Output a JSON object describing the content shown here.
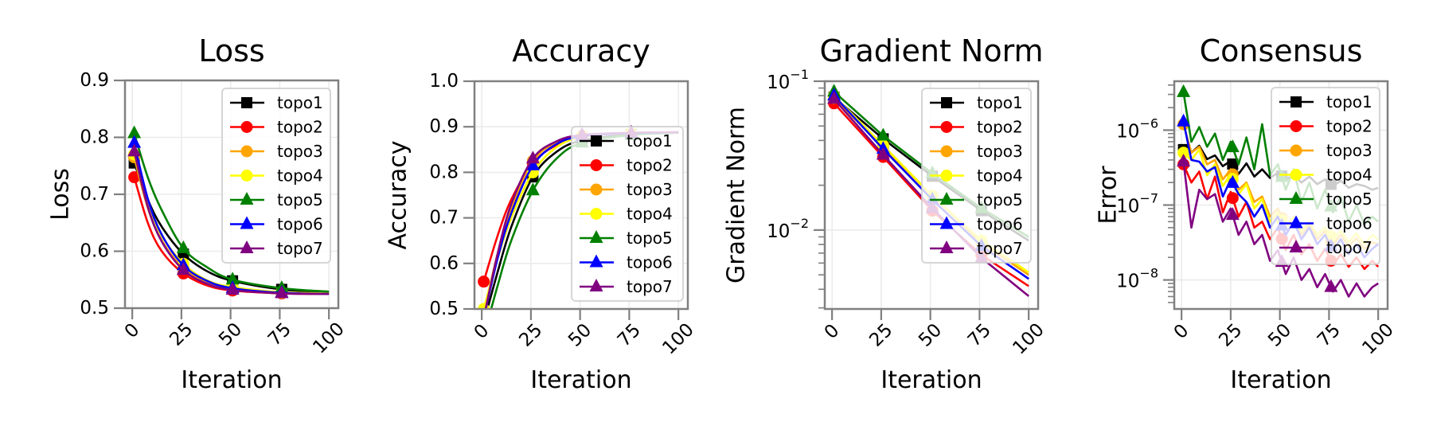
{
  "chart_data": [
    {
      "type": "line",
      "title": "Loss",
      "xlabel": "Iteration",
      "ylabel": "Loss",
      "yscale": "linear",
      "xlim": [
        -3.7,
        104.8
      ],
      "ylim": [
        0.5,
        0.9
      ],
      "xticks": [
        "0",
        "25",
        "50",
        "75",
        "100"
      ],
      "yticks": [
        {
          "v": 0.5,
          "label": "0.5"
        },
        {
          "v": 0.6,
          "label": "0.6"
        },
        {
          "v": 0.7,
          "label": "0.7"
        },
        {
          "v": 0.8,
          "label": "0.8"
        },
        {
          "v": 0.9,
          "label": "0.9"
        }
      ],
      "grid": true,
      "legend": "upper right",
      "markers_at": [
        1,
        26,
        51,
        76
      ],
      "x": [
        1,
        8,
        15,
        26,
        38,
        51,
        76,
        100
      ],
      "series": [
        {
          "name": "topo1",
          "color": "#000000",
          "marker": "square",
          "y": [
            0.755,
            0.69,
            0.643,
            0.595,
            0.565,
            0.548,
            0.533,
            0.528
          ]
        },
        {
          "name": "topo2",
          "color": "#ff0000",
          "marker": "circle",
          "y": [
            0.73,
            0.649,
            0.6,
            0.561,
            0.54,
            0.531,
            0.526,
            0.525
          ]
        },
        {
          "name": "topo3",
          "color": "#ffa500",
          "marker": "circle",
          "y": [
            0.765,
            0.675,
            0.619,
            0.57,
            0.545,
            0.534,
            0.527,
            0.525
          ]
        },
        {
          "name": "topo4",
          "color": "#ffff00",
          "marker": "circle",
          "y": [
            0.77,
            0.683,
            0.627,
            0.578,
            0.549,
            0.537,
            0.528,
            0.526
          ]
        },
        {
          "name": "topo5",
          "color": "#008000",
          "marker": "triangle",
          "y": [
            0.807,
            0.729,
            0.672,
            0.605,
            0.572,
            0.55,
            0.535,
            0.529
          ]
        },
        {
          "name": "topo6",
          "color": "#0000ff",
          "marker": "triangle",
          "y": [
            0.79,
            0.691,
            0.629,
            0.575,
            0.548,
            0.535,
            0.527,
            0.525
          ]
        },
        {
          "name": "topo7",
          "color": "#800080",
          "marker": "triangle",
          "y": [
            0.775,
            0.677,
            0.617,
            0.567,
            0.543,
            0.532,
            0.526,
            0.525
          ]
        }
      ]
    },
    {
      "type": "line",
      "title": "Accuracy",
      "xlabel": "Iteration",
      "ylabel": "Accuracy",
      "yscale": "linear",
      "xlim": [
        -3.7,
        104.8
      ],
      "ylim": [
        0.5,
        1.0
      ],
      "xticks": [
        "0",
        "25",
        "50",
        "75",
        "100"
      ],
      "yticks": [
        {
          "v": 0.5,
          "label": "0.5"
        },
        {
          "v": 0.6,
          "label": "0.6"
        },
        {
          "v": 0.7,
          "label": "0.7"
        },
        {
          "v": 0.8,
          "label": "0.8"
        },
        {
          "v": 0.9,
          "label": "0.9"
        },
        {
          "v": 1.0,
          "label": "1.0"
        }
      ],
      "grid": true,
      "legend": "lower right",
      "markers_at": [
        1,
        26,
        51,
        76
      ],
      "x": [
        1,
        8,
        15,
        26,
        38,
        51,
        76,
        100
      ],
      "series": [
        {
          "name": "topo1",
          "color": "#000000",
          "marker": "square",
          "y": [
            0.47,
            0.58,
            0.68,
            0.79,
            0.845,
            0.87,
            0.883,
            0.887
          ]
        },
        {
          "name": "topo2",
          "color": "#ff0000",
          "marker": "circle",
          "y": [
            0.56,
            0.66,
            0.74,
            0.82,
            0.86,
            0.878,
            0.886,
            0.888
          ]
        },
        {
          "name": "topo3",
          "color": "#ffa500",
          "marker": "circle",
          "y": [
            0.49,
            0.62,
            0.72,
            0.825,
            0.865,
            0.88,
            0.886,
            0.888
          ]
        },
        {
          "name": "topo4",
          "color": "#ffff00",
          "marker": "circle",
          "y": [
            0.5,
            0.61,
            0.7,
            0.8,
            0.855,
            0.877,
            0.886,
            0.888
          ]
        },
        {
          "name": "topo5",
          "color": "#008000",
          "marker": "triangle",
          "y": [
            0.44,
            0.55,
            0.65,
            0.76,
            0.83,
            0.865,
            0.882,
            0.887
          ]
        },
        {
          "name": "topo6",
          "color": "#0000ff",
          "marker": "triangle",
          "y": [
            0.48,
            0.61,
            0.71,
            0.815,
            0.862,
            0.879,
            0.886,
            0.888
          ]
        },
        {
          "name": "topo7",
          "color": "#800080",
          "marker": "triangle",
          "y": [
            0.48,
            0.62,
            0.73,
            0.83,
            0.868,
            0.882,
            0.887,
            0.888
          ]
        }
      ]
    },
    {
      "type": "line",
      "title": "Gradient Norm",
      "xlabel": "Iteration",
      "ylabel": "Gradient Norm",
      "yscale": "log",
      "xlim": [
        -3.7,
        104.8
      ],
      "ylim": [
        0.00295,
        0.1
      ],
      "xticks": [
        "0",
        "25",
        "50",
        "75",
        "100"
      ],
      "yticks": [
        {
          "v": 0.1,
          "base": "10",
          "exp": "−1"
        },
        {
          "v": 0.01,
          "base": "10",
          "exp": "−2"
        }
      ],
      "grid": true,
      "legend": "upper right",
      "markers_at": [
        1,
        26,
        51,
        76
      ],
      "x": [
        1,
        26,
        51,
        76,
        100
      ],
      "series": [
        {
          "name": "topo1",
          "color": "#000000",
          "marker": "square",
          "y": [
            0.078,
            0.041,
            0.023,
            0.0135,
            0.0085
          ]
        },
        {
          "name": "topo2",
          "color": "#ff0000",
          "marker": "circle",
          "y": [
            0.071,
            0.031,
            0.0135,
            0.0068,
            0.0042
          ]
        },
        {
          "name": "topo3",
          "color": "#ffa500",
          "marker": "circle",
          "y": [
            0.077,
            0.036,
            0.017,
            0.0082,
            0.005
          ]
        },
        {
          "name": "topo4",
          "color": "#ffff00",
          "marker": "circle",
          "y": [
            0.08,
            0.037,
            0.017,
            0.0085,
            0.0052
          ]
        },
        {
          "name": "topo5",
          "color": "#008000",
          "marker": "triangle",
          "y": [
            0.085,
            0.043,
            0.024,
            0.014,
            0.009
          ]
        },
        {
          "name": "topo6",
          "color": "#0000ff",
          "marker": "triangle",
          "y": [
            0.08,
            0.035,
            0.016,
            0.0078,
            0.0047
          ]
        },
        {
          "name": "topo7",
          "color": "#800080",
          "marker": "triangle",
          "y": [
            0.076,
            0.032,
            0.014,
            0.0065,
            0.0036
          ]
        }
      ]
    },
    {
      "type": "line",
      "title": "Consensus",
      "xlabel": "Iteration",
      "ylabel": "Error",
      "yscale": "log",
      "xlim": [
        -3.7,
        104.8
      ],
      "ylim": [
        4.1e-09,
        4.5e-06
      ],
      "xticks": [
        "0",
        "25",
        "50",
        "75",
        "100"
      ],
      "yticks": [
        {
          "v": 1e-06,
          "base": "10",
          "exp": "−6"
        },
        {
          "v": 1e-07,
          "base": "10",
          "exp": "−7"
        },
        {
          "v": 1e-08,
          "base": "10",
          "exp": "−8"
        }
      ],
      "grid": true,
      "legend": "upper right",
      "markers_at": [
        1,
        26,
        51,
        76
      ],
      "x": [
        1,
        5,
        9,
        13,
        17,
        21,
        25,
        29,
        33,
        37,
        41,
        45,
        49,
        53,
        57,
        61,
        65,
        69,
        73,
        77,
        81,
        85,
        89,
        93,
        97,
        100
      ],
      "series": [
        {
          "name": "topo1",
          "color": "#000000",
          "marker": "square",
          "y": [
            5.5e-07,
            5e-07,
            6.2e-07,
            4.1e-07,
            4.6e-07,
            3.3e-07,
            3.9e-07,
            2.6e-07,
            3.6e-07,
            2.4e-07,
            3e-07,
            2.3e-07,
            2.7e-07,
            2.2e-07,
            2.5e-07,
            2e-07,
            2.4e-07,
            1.9e-07,
            2.2e-07,
            1.8e-07,
            2.1e-07,
            1.7e-07,
            1.9e-07,
            1.8e-07,
            1.6e-07,
            1.7e-07
          ]
        },
        {
          "name": "topo2",
          "color": "#ff0000",
          "marker": "circle",
          "y": [
            3.5e-07,
            2e-07,
            2.8e-07,
            1.2e-07,
            2.4e-07,
            8e-08,
            1.5e-07,
            7e-08,
            1.1e-07,
            5e-08,
            6e-08,
            3.5e-08,
            5e-08,
            2.5e-08,
            4e-08,
            2.2e-08,
            3e-08,
            1.8e-08,
            2.6e-08,
            1.6e-08,
            2.2e-08,
            1.5e-08,
            2e-08,
            1.4e-08,
            1.8e-08,
            1.5e-08
          ]
        },
        {
          "name": "topo3",
          "color": "#ffa500",
          "marker": "circle",
          "y": [
            1.2e-06,
            5e-07,
            6e-07,
            3.5e-07,
            4e-07,
            2.2e-07,
            3e-07,
            1.6e-07,
            2e-07,
            1.1e-07,
            1.3e-07,
            7e-08,
            9e-08,
            5e-08,
            7e-08,
            4e-08,
            5.5e-08,
            3.5e-08,
            4.5e-08,
            3e-08,
            4e-08,
            2.8e-08,
            3.6e-08,
            2.6e-08,
            3.2e-08,
            3e-08
          ]
        },
        {
          "name": "topo4",
          "color": "#ffff00",
          "marker": "circle",
          "y": [
            5e-07,
            4e-07,
            5.5e-07,
            2.5e-07,
            3.5e-07,
            1.8e-07,
            2.6e-07,
            1.4e-07,
            1.9e-07,
            9e-08,
            1.2e-07,
            6e-08,
            8e-08,
            5e-08,
            7e-08,
            4.5e-08,
            6e-08,
            4e-08,
            5e-08,
            3.5e-08,
            4.5e-08,
            3.2e-08,
            4.2e-08,
            3e-08,
            4e-08,
            3.5e-08
          ]
        },
        {
          "name": "topo5",
          "color": "#008000",
          "marker": "triangle",
          "y": [
            3.2e-06,
            7e-07,
            1.1e-06,
            6e-07,
            9e-07,
            4e-07,
            7e-07,
            3.5e-07,
            8e-07,
            3e-07,
            1.2e-06,
            2.5e-07,
            3.5e-07,
            1.6e-07,
            3e-07,
            1.1e-07,
            2e-07,
            9e-08,
            1.6e-07,
            8e-08,
            1.3e-07,
            6e-08,
            1e-07,
            5.5e-08,
            7e-08,
            6e-08
          ]
        },
        {
          "name": "topo6",
          "color": "#0000ff",
          "marker": "triangle",
          "y": [
            1.3e-06,
            4e-07,
            3.8e-07,
            2.8e-07,
            3.2e-07,
            1.3e-07,
            2.2e-07,
            1.4e-07,
            1.1e-07,
            7e-08,
            1e-07,
            5e-08,
            7e-08,
            4e-08,
            6e-08,
            3.5e-08,
            5e-08,
            3e-08,
            4e-08,
            2.5e-08,
            3.5e-08,
            2.2e-08,
            3e-08,
            2e-08,
            2.6e-08,
            3e-08
          ]
        },
        {
          "name": "topo7",
          "color": "#800080",
          "marker": "triangle",
          "y": [
            3.8e-07,
            5e-08,
            1.6e-07,
            1.2e-07,
            1.4e-07,
            6e-08,
            9e-08,
            4e-08,
            6e-08,
            3e-08,
            4e-08,
            1.8e-08,
            2.5e-08,
            1.2e-08,
            2e-08,
            1e-08,
            1.4e-08,
            8e-09,
            1.2e-08,
            7e-09,
            1e-08,
            6e-09,
            9e-09,
            6e-09,
            8e-09,
            9e-09
          ]
        }
      ]
    }
  ]
}
